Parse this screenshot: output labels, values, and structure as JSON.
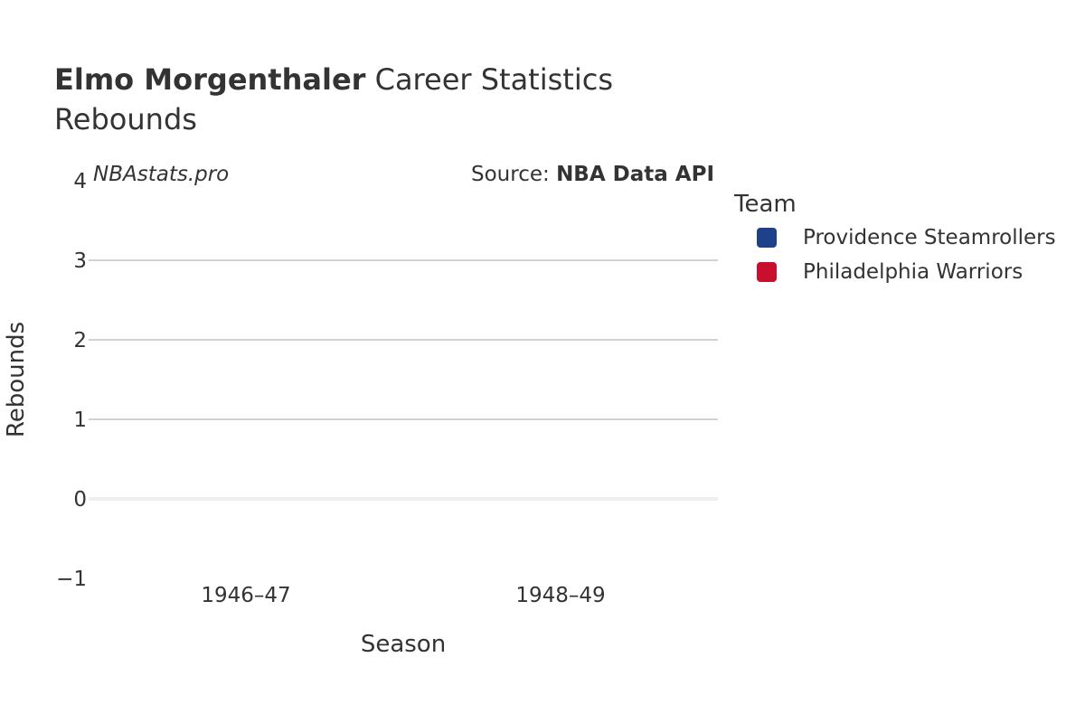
{
  "header": {
    "player_name": "Elmo Morgenthaler",
    "title_suffix": " Career Statistics",
    "subtitle": "Rebounds"
  },
  "watermark": "NBAstats.pro",
  "source": {
    "prefix": "Source: ",
    "name": "NBA Data API"
  },
  "legend": {
    "title": "Team",
    "items": [
      {
        "label": "Providence Steamrollers",
        "color": "#1d428a"
      },
      {
        "label": "Philadelphia Warriors",
        "color": "#c8102e"
      }
    ]
  },
  "chart_data": {
    "type": "bar",
    "title": "Elmo Morgenthaler Career Statistics",
    "subtitle": "Rebounds",
    "xlabel": "Season",
    "ylabel": "Rebounds",
    "categories": [
      "1946–47",
      "1948–49"
    ],
    "series": [
      {
        "name": "Providence Steamrollers",
        "values": [
          0,
          null
        ]
      },
      {
        "name": "Philadelphia Warriors",
        "values": [
          null,
          0
        ]
      }
    ],
    "ylim": [
      -1,
      4
    ],
    "yticks": [
      -1,
      0,
      1,
      2,
      3,
      4
    ],
    "ytick_labels": [
      "−1",
      "0",
      "1",
      "2",
      "3",
      "4"
    ],
    "grid": true,
    "legend_position": "right"
  }
}
